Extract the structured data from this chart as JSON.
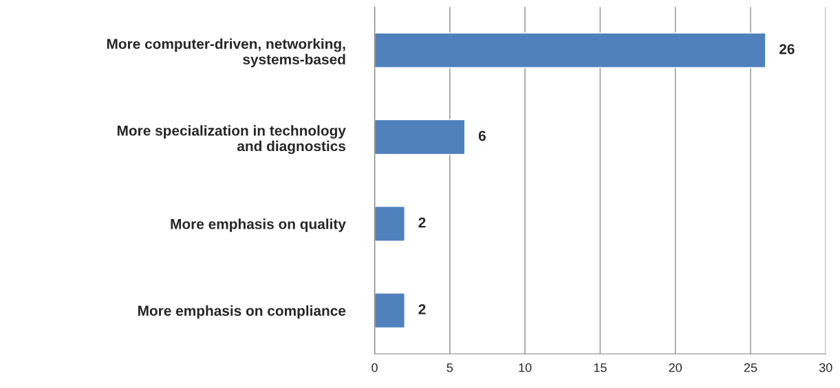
{
  "chart_data": {
    "type": "bar",
    "orientation": "horizontal",
    "categories": [
      "More computer-driven, networking, systems-based",
      "More specialization in technology and diagnostics",
      "More emphasis on quality",
      "More emphasis on compliance"
    ],
    "values": [
      26,
      6,
      2,
      2
    ],
    "color": "#4f81bd",
    "xlim": [
      0,
      30
    ],
    "xticks": [
      0,
      5,
      10,
      15,
      20,
      25,
      30
    ],
    "grid": "x",
    "data_labels": true
  }
}
